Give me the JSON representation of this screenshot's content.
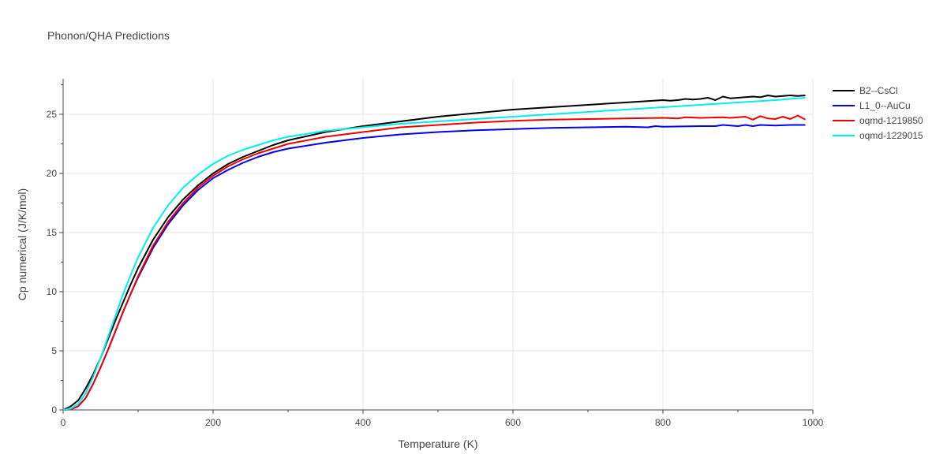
{
  "chart_data": {
    "type": "line",
    "title": "Phonon/QHA Predictions",
    "xlabel": "Temperature (K)",
    "ylabel": "Cp numerical (J/K/mol)",
    "xlim": [
      0,
      1000
    ],
    "ylim": [
      0,
      28
    ],
    "xticks": [
      0,
      200,
      400,
      600,
      800,
      1000
    ],
    "yticks": [
      0,
      5,
      10,
      15,
      20,
      25
    ],
    "grid": true,
    "legend_position": "top-right",
    "series": [
      {
        "name": "B2--CsCl",
        "color": "#000000",
        "x": [
          0,
          10,
          20,
          30,
          40,
          50,
          60,
          70,
          80,
          90,
          100,
          120,
          140,
          160,
          180,
          200,
          220,
          240,
          260,
          280,
          300,
          350,
          400,
          450,
          500,
          550,
          600,
          650,
          700,
          750,
          800,
          810,
          820,
          830,
          840,
          850,
          860,
          870,
          880,
          890,
          900,
          910,
          920,
          930,
          940,
          950,
          960,
          970,
          980,
          990
        ],
        "y": [
          0,
          0.3,
          0.8,
          1.8,
          3.0,
          4.4,
          6.0,
          7.6,
          9.1,
          10.6,
          12.0,
          14.4,
          16.3,
          17.8,
          19.0,
          20.0,
          20.8,
          21.4,
          21.9,
          22.4,
          22.8,
          23.5,
          24.0,
          24.4,
          24.8,
          25.1,
          25.4,
          25.6,
          25.8,
          26.0,
          26.2,
          26.15,
          26.2,
          26.3,
          26.25,
          26.3,
          26.4,
          26.2,
          26.5,
          26.35,
          26.4,
          26.45,
          26.5,
          26.45,
          26.6,
          26.5,
          26.55,
          26.6,
          26.55,
          26.6
        ]
      },
      {
        "name": "L1_0--AuCu",
        "color": "#0000ee",
        "x": [
          0,
          10,
          20,
          30,
          40,
          50,
          60,
          70,
          80,
          90,
          100,
          120,
          140,
          160,
          180,
          200,
          220,
          240,
          260,
          280,
          300,
          350,
          400,
          450,
          500,
          550,
          600,
          650,
          700,
          750,
          780,
          790,
          800,
          850,
          870,
          880,
          900,
          910,
          920,
          930,
          950,
          970,
          990
        ],
        "y": [
          0,
          0.05,
          0.3,
          1.0,
          2.2,
          3.6,
          5.1,
          6.7,
          8.3,
          9.8,
          11.2,
          13.7,
          15.7,
          17.3,
          18.6,
          19.6,
          20.3,
          20.9,
          21.4,
          21.8,
          22.1,
          22.6,
          23.0,
          23.3,
          23.5,
          23.65,
          23.75,
          23.85,
          23.9,
          23.95,
          23.9,
          24.0,
          23.95,
          24.0,
          24.0,
          24.1,
          24.0,
          24.1,
          24.0,
          24.1,
          24.05,
          24.1,
          24.1
        ]
      },
      {
        "name": "oqmd-1219850",
        "color": "#ee0000",
        "x": [
          0,
          10,
          20,
          30,
          40,
          50,
          60,
          70,
          80,
          90,
          100,
          120,
          140,
          160,
          180,
          200,
          220,
          240,
          260,
          280,
          300,
          350,
          400,
          450,
          500,
          550,
          600,
          650,
          700,
          750,
          800,
          820,
          830,
          850,
          880,
          890,
          900,
          910,
          920,
          930,
          940,
          950,
          960,
          970,
          980,
          990
        ],
        "y": [
          0,
          0.05,
          0.3,
          1.0,
          2.2,
          3.6,
          5.1,
          6.7,
          8.3,
          9.8,
          11.3,
          13.9,
          15.9,
          17.5,
          18.8,
          19.8,
          20.6,
          21.2,
          21.7,
          22.1,
          22.5,
          23.1,
          23.5,
          23.9,
          24.1,
          24.3,
          24.45,
          24.55,
          24.6,
          24.65,
          24.7,
          24.65,
          24.75,
          24.7,
          24.75,
          24.7,
          24.75,
          24.8,
          24.55,
          24.85,
          24.65,
          24.6,
          24.8,
          24.6,
          24.9,
          24.55
        ]
      },
      {
        "name": "oqmd-1229015",
        "color": "#00eeee",
        "x": [
          0,
          10,
          20,
          30,
          40,
          50,
          60,
          70,
          80,
          90,
          100,
          120,
          140,
          160,
          180,
          200,
          220,
          240,
          260,
          280,
          300,
          350,
          400,
          450,
          500,
          550,
          600,
          650,
          700,
          750,
          800,
          850,
          900,
          950,
          990
        ],
        "y": [
          0,
          0.1,
          0.5,
          1.4,
          2.8,
          4.4,
          6.2,
          8.0,
          9.8,
          11.4,
          12.9,
          15.4,
          17.3,
          18.8,
          19.9,
          20.8,
          21.5,
          22.0,
          22.4,
          22.8,
          23.1,
          23.6,
          23.9,
          24.2,
          24.4,
          24.6,
          24.8,
          25.0,
          25.2,
          25.4,
          25.6,
          25.8,
          26.0,
          26.2,
          26.4
        ]
      }
    ]
  }
}
